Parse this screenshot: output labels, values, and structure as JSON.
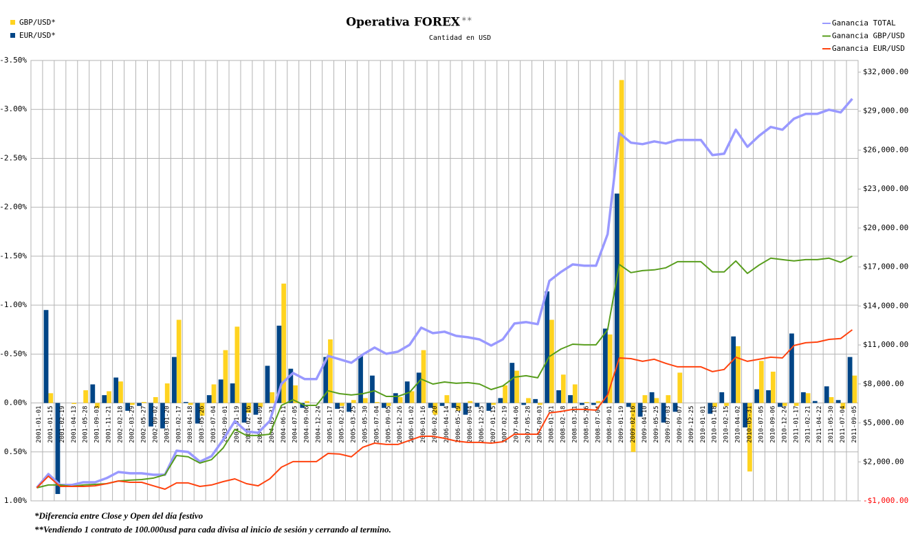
{
  "chart_data": {
    "type": "bar_line",
    "title": "Operativa FOREX",
    "title_mark": "**",
    "subtitle": "Cantidad en USD",
    "footnotes": [
      "*Diferencia entre Close y Open del día festivo",
      "**Vendiendo 1 contrato de 100.000usd para cada divisa al inicio de sesión y cerrando al termino."
    ],
    "categories": [
      "2001-01-01",
      "2001-01-15",
      "2001-02-19",
      "2001-04-13",
      "2001-05-28",
      "2001-09-03",
      "2001-11-21",
      "2002-02-18",
      "2002-03-29",
      "2002-05-27",
      "2002-09-02",
      "2003-01-20",
      "2003-02-17",
      "2003-04-18",
      "2003-05-26",
      "2003-07-04",
      "2003-09-01",
      "2004-01-19",
      "2004-02-16",
      "2004-04-09",
      "2004-05-31",
      "2004-06-11",
      "2004-07-05",
      "2004-09-06",
      "2004-12-24",
      "2005-01-17",
      "2005-02-21",
      "2005-03-25",
      "2005-05-30",
      "2005-07-04",
      "2005-09-05",
      "2005-12-26",
      "2006-01-02",
      "2006-01-16",
      "2006-02-20",
      "2006-04-14",
      "2006-05-29",
      "2006-09-04",
      "2006-12-25",
      "2007-01-15",
      "2007-02-19",
      "2007-04-06",
      "2007-05-28",
      "2007-09-03",
      "2008-01-21",
      "2008-02-18",
      "2008-03-21",
      "2008-05-26",
      "2008-07-04",
      "2008-09-01",
      "2009-01-19",
      "2009-02-16",
      "2009-04-10",
      "2009-05-25",
      "2009-07-03",
      "2009-09-07",
      "2009-12-25",
      "2010-01-01",
      "2010-01-18",
      "2010-02-15",
      "2010-04-02",
      "2010-05-31",
      "2010-07-05",
      "2010-09-06",
      "2010-12-24",
      "2011-01-17",
      "2011-02-21",
      "2011-04-22",
      "2011-05-30",
      "2011-07-04",
      "2011-09-05"
    ],
    "series": [
      {
        "name": "GBP/USD*",
        "kind": "bar",
        "color": "#ffd320",
        "values": [
          0,
          -0.1,
          0,
          0.01,
          -0.13,
          0.05,
          -0.12,
          -0.22,
          0.02,
          -0.01,
          -0.06,
          -0.2,
          -0.85,
          0.02,
          0.13,
          -0.19,
          -0.54,
          -0.78,
          0.1,
          0.04,
          -0.11,
          -1.22,
          -0.18,
          -0.02,
          0,
          -0.65,
          0.03,
          -0.03,
          -0.05,
          -0.01,
          0.03,
          -0.06,
          -0.12,
          -0.54,
          0.12,
          -0.08,
          0.08,
          -0.02,
          0,
          0.02,
          -0.18,
          -0.33,
          -0.05,
          0.02,
          -0.85,
          -0.29,
          -0.19,
          -0.01,
          -0.02,
          -0.7,
          -3.3,
          0.5,
          -0.08,
          -0.05,
          -0.08,
          -0.31,
          0,
          0,
          0.04,
          0.03,
          -0.58,
          0.7,
          -0.43,
          -0.32,
          0.03,
          0.03,
          -0.1,
          0,
          -0.06,
          0.06,
          -0.28
        ]
      },
      {
        "name": "EUR/USD*",
        "kind": "bar",
        "color": "#004586",
        "values": [
          0,
          -0.95,
          0.93,
          0,
          0,
          -0.19,
          -0.08,
          -0.26,
          0.08,
          0.03,
          0.24,
          0.26,
          -0.47,
          -0.01,
          0.21,
          -0.08,
          -0.24,
          -0.2,
          0.2,
          0.12,
          -0.38,
          -0.79,
          -0.35,
          0.05,
          0,
          -0.47,
          0.06,
          0.09,
          -0.48,
          -0.28,
          0.05,
          -0.1,
          -0.22,
          -0.31,
          0.05,
          0.03,
          0.05,
          0.12,
          0.04,
          0.08,
          -0.05,
          -0.41,
          0.02,
          -0.04,
          -1.14,
          -0.13,
          -0.08,
          0.02,
          0.02,
          -0.76,
          -2.14,
          0.04,
          0.14,
          -0.11,
          0.2,
          0.09,
          0,
          0,
          0.11,
          -0.11,
          -0.68,
          0.25,
          -0.14,
          -0.13,
          0.04,
          -0.71,
          -0.11,
          -0.02,
          -0.17,
          -0.03,
          -0.47
        ]
      },
      {
        "name": "Ganancia TOTAL",
        "kind": "line",
        "axis": "y2",
        "color": "#9999ff",
        "values": [
          5,
          1060,
          220,
          220,
          430,
          430,
          750,
          1220,
          1120,
          1120,
          1010,
          1010,
          2860,
          2760,
          2020,
          2440,
          3710,
          5140,
          4340,
          4240,
          5140,
          8000,
          8840,
          8370,
          8370,
          10160,
          9900,
          9630,
          10270,
          10800,
          10320,
          10480,
          11010,
          12330,
          11910,
          12020,
          11700,
          11590,
          11430,
          10960,
          11430,
          12650,
          12760,
          12600,
          15930,
          16620,
          17200,
          17100,
          17100,
          19530,
          27310,
          26570,
          26460,
          26670,
          26510,
          26780,
          26780,
          26780,
          25610,
          25720,
          27570,
          26250,
          27100,
          27780,
          27570,
          28420,
          28790,
          28790,
          29110,
          28900,
          29950
        ]
      },
      {
        "name": "Ganancia GBP/USD",
        "kind": "line",
        "axis": "y2",
        "color": "#579d1c",
        "values": [
          5,
          220,
          220,
          110,
          220,
          270,
          320,
          530,
          590,
          640,
          750,
          1010,
          2490,
          2390,
          1910,
          2170,
          3070,
          4500,
          4030,
          4030,
          4130,
          6350,
          6780,
          6350,
          6350,
          7470,
          7250,
          7150,
          7250,
          7470,
          7040,
          7040,
          7360,
          8370,
          7990,
          8150,
          8050,
          8100,
          7990,
          7570,
          7840,
          8520,
          8630,
          8470,
          10110,
          10690,
          11060,
          11010,
          11010,
          12170,
          17200,
          16570,
          16720,
          16780,
          16940,
          17410,
          17410,
          17410,
          16620,
          16620,
          17470,
          16510,
          17150,
          17680,
          17570,
          17470,
          17570,
          17570,
          17680,
          17360,
          17840
        ]
      },
      {
        "name": "Ganancia EUR/USD",
        "kind": "line",
        "axis": "y2",
        "color": "#ff420e",
        "values": [
          5,
          900,
          110,
          110,
          110,
          160,
          320,
          530,
          430,
          430,
          160,
          -100,
          380,
          380,
          110,
          220,
          480,
          690,
          320,
          160,
          690,
          1590,
          2020,
          2020,
          2020,
          2650,
          2600,
          2390,
          3130,
          3440,
          3340,
          3340,
          3660,
          3970,
          3970,
          3810,
          3600,
          3500,
          3500,
          3440,
          3550,
          4130,
          4130,
          4130,
          5770,
          5880,
          6040,
          6040,
          5980,
          7150,
          10000,
          9950,
          9740,
          9900,
          9580,
          9320,
          9320,
          9320,
          8950,
          9110,
          10060,
          9740,
          9900,
          10060,
          10000,
          10960,
          11170,
          11220,
          11430,
          11490,
          12170
        ]
      }
    ],
    "ylim": [
      -3.5,
      1.0
    ],
    "y_inverted": true,
    "yticks": [
      {
        "value": -3.5,
        "label": "-3.50%"
      },
      {
        "value": -3.0,
        "label": "-3.00%"
      },
      {
        "value": -2.5,
        "label": "-2.50%"
      },
      {
        "value": -2.0,
        "label": "-2.00%"
      },
      {
        "value": -1.5,
        "label": "-1.50%"
      },
      {
        "value": -1.0,
        "label": "-1.00%"
      },
      {
        "value": -0.5,
        "label": "-0.50%"
      },
      {
        "value": 0,
        "label": "0.00%"
      },
      {
        "value": 0.5,
        "label": "0.50%"
      },
      {
        "value": 1.0,
        "label": "1.00%"
      }
    ],
    "y2lim": [
      -1000,
      32900
    ],
    "y2ticks": [
      {
        "value": -1000,
        "label": "-$1,000.00"
      },
      {
        "value": 2000,
        "label": "$2,000.00"
      },
      {
        "value": 5000,
        "label": "$5,000.00"
      },
      {
        "value": 8000,
        "label": "$8,000.00"
      },
      {
        "value": 11000,
        "label": "$11,000.00"
      },
      {
        "value": 14000,
        "label": "$14,000.00"
      },
      {
        "value": 17000,
        "label": "$17,000.00"
      },
      {
        "value": 20000,
        "label": "$20,000.00"
      },
      {
        "value": 23000,
        "label": "$23,000.00"
      },
      {
        "value": 26000,
        "label": "$26,000.00"
      },
      {
        "value": 29000,
        "label": "$29,000.00"
      },
      {
        "value": 32000,
        "label": "$32,000.00"
      }
    ],
    "y2_negative_color": "#ff0000",
    "grid": true,
    "bar_legend": "top-left",
    "line_legend": "top-right"
  }
}
